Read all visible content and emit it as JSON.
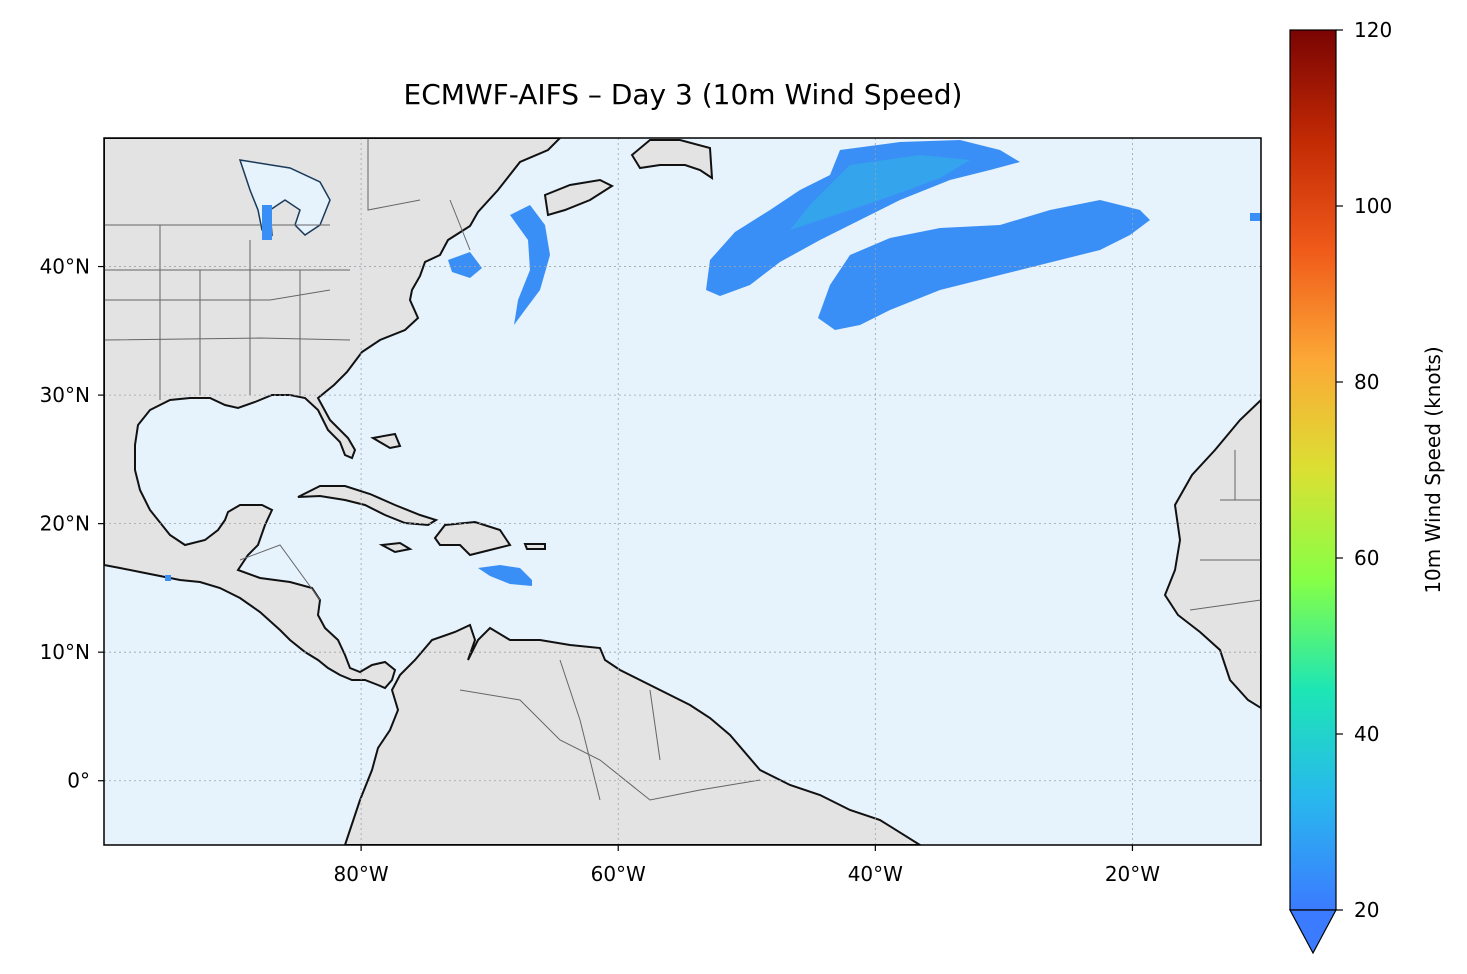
{
  "title": "ECMWF-AIFS – Day 3 (10m Wind Speed)",
  "map": {
    "extent": {
      "lon_min": -100,
      "lon_max": -10,
      "lat_min": -5,
      "lat_max": 50
    },
    "lat_ticks": [
      {
        "value": 40,
        "label": "40°N"
      },
      {
        "value": 30,
        "label": "30°N"
      },
      {
        "value": 20,
        "label": "20°N"
      },
      {
        "value": 10,
        "label": "10°N"
      },
      {
        "value": 0,
        "label": "0°"
      }
    ],
    "lon_ticks": [
      {
        "value": -80,
        "label": "80°W"
      },
      {
        "value": -60,
        "label": "60°W"
      },
      {
        "value": -40,
        "label": "40°W"
      },
      {
        "value": -20,
        "label": "20°W"
      }
    ],
    "colors": {
      "ocean": "#e6f2fc",
      "land": "#e3e3e3",
      "coast": "#111111",
      "border": "#666666",
      "wind_low": "#3a8ff7",
      "wind_mid": "#28c4e0"
    }
  },
  "colorbar": {
    "label": "10m Wind Speed (knots)",
    "min": 20,
    "max": 120,
    "ticks": [
      {
        "value": 20,
        "label": "20"
      },
      {
        "value": 40,
        "label": "40"
      },
      {
        "value": 60,
        "label": "60"
      },
      {
        "value": 80,
        "label": "80"
      },
      {
        "value": 100,
        "label": "100"
      },
      {
        "value": 120,
        "label": "120"
      }
    ],
    "colormap": [
      "#3b7bff",
      "#29b7ee",
      "#1de6b5",
      "#86ff46",
      "#dbe033",
      "#fca836",
      "#f05a1a",
      "#c22a04",
      "#7a0403"
    ],
    "extend": "min"
  }
}
